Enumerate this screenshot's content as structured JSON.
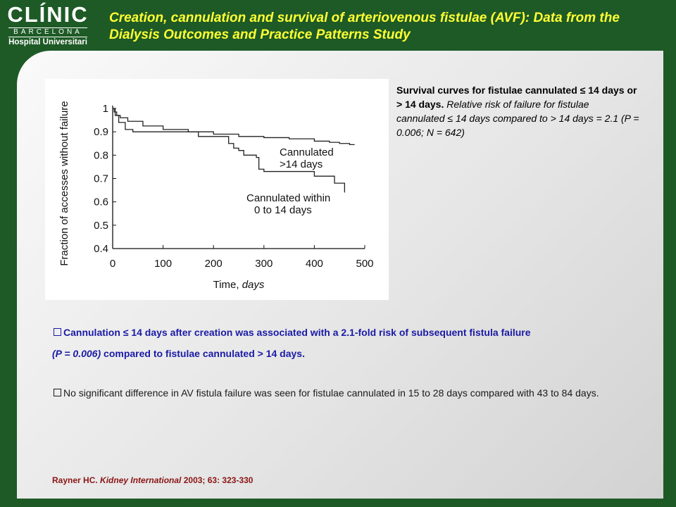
{
  "logo": {
    "main": "CLÍNIC",
    "sub": "BARCELONA",
    "hospital": "Hospital Universitari"
  },
  "title": "Creation, cannulation and survival of arteriovenous fistulae (AVF): Data from the Dialysis Outcomes and Practice Patterns Study",
  "caption": {
    "bold": "Survival curves for fistulae cannulated ≤ 14 days or > 14 days.",
    "italic": "Relative risk of failure for fistulae cannulated ≤ 14 days compared to > 14 days = 2.1 (P = 0.006; N = 642)"
  },
  "bullet1": {
    "text_a": "Cannulation ≤ 14 days after creation was associated with a 2.1-fold risk of subsequent fistula failure",
    "text_p": "(P = 0.006)",
    "text_b": " compared to fistulae cannulated > 14 days."
  },
  "bullet2": {
    "text": "No significant difference in AV fistula failure was seen for fistulae cannulated in 15 to 28 days compared with 43 to 84 days."
  },
  "reference": {
    "author": "Rayner HC.",
    "journal": "Kidney International",
    "details": " 2003; 63: 323-330"
  },
  "colors": {
    "background": "#1e5a26",
    "title": "#ffff33",
    "bullet_blue": "#1a1aa6",
    "reference_red": "#8b1414"
  },
  "chart_data": {
    "type": "line",
    "step": true,
    "xlabel": "Time,",
    "xlabel_unit": "days",
    "ylabel": "Fraction of accesses without failure",
    "xlim": [
      0,
      500
    ],
    "ylim": [
      0.4,
      1.0
    ],
    "x_ticks": [
      0,
      100,
      200,
      300,
      400,
      500
    ],
    "y_ticks": [
      1,
      0.9,
      0.8,
      0.7,
      0.6,
      0.5,
      0.4
    ],
    "y_tick_labels": [
      "1",
      "0.9",
      "0.8",
      "0.7",
      "0.6",
      "0.5",
      "0.4"
    ],
    "grid": false,
    "series": [
      {
        "name": "Cannulated\n>14 days",
        "label_lines": [
          "Cannulated",
          ">14 days"
        ],
        "x": [
          0,
          3,
          8,
          15,
          30,
          60,
          100,
          150,
          200,
          250,
          300,
          350,
          400,
          430,
          450,
          470,
          480
        ],
        "y": [
          1.0,
          0.985,
          0.97,
          0.96,
          0.945,
          0.925,
          0.91,
          0.9,
          0.89,
          0.88,
          0.875,
          0.87,
          0.86,
          0.855,
          0.85,
          0.845,
          0.845
        ]
      },
      {
        "name": "Cannulated within\n0 to 14 days",
        "label_lines": [
          "Cannulated within",
          "0 to 14 days"
        ],
        "x": [
          0,
          5,
          12,
          25,
          40,
          100,
          170,
          230,
          240,
          250,
          260,
          285,
          290,
          300,
          360,
          400,
          440,
          460
        ],
        "y": [
          1.0,
          0.97,
          0.94,
          0.91,
          0.9,
          0.9,
          0.88,
          0.85,
          0.83,
          0.82,
          0.8,
          0.79,
          0.74,
          0.73,
          0.73,
          0.71,
          0.68,
          0.64
        ]
      }
    ]
  }
}
